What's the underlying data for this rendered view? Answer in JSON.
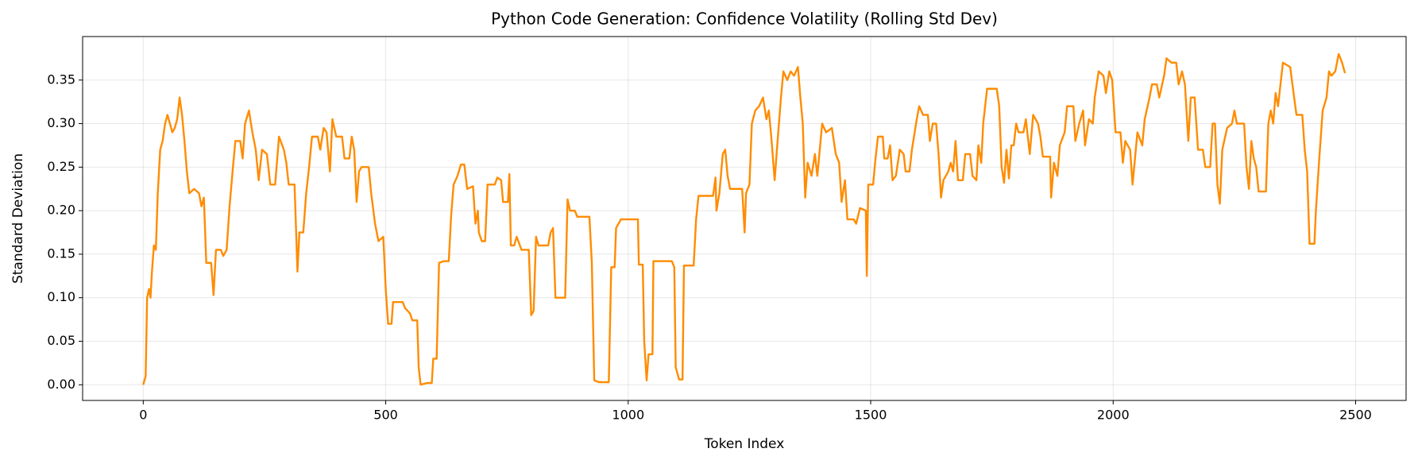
{
  "chart_data": {
    "type": "line",
    "title": "Python Code Generation: Confidence Volatility (Rolling Std Dev)",
    "x_label": "Token Index",
    "y_label": "Standard Deviation",
    "color": "#ff8c00",
    "grid": true,
    "xlim": [
      -125,
      2604
    ],
    "ylim": [
      -0.018,
      0.4
    ],
    "xticks": [
      0,
      500,
      1000,
      1500,
      2000,
      2500
    ],
    "yticks": [
      {
        "value": 0,
        "label": "0.00"
      },
      {
        "value": 0.05,
        "label": "0.05"
      },
      {
        "value": 0.1,
        "label": "0.10"
      },
      {
        "value": 0.15,
        "label": "0.15"
      },
      {
        "value": 0.2,
        "label": "0.20"
      },
      {
        "value": 0.25,
        "label": "0.25"
      },
      {
        "value": 0.3,
        "label": "0.30"
      },
      {
        "value": 0.35,
        "label": "0.35"
      }
    ],
    "x": [
      0,
      5,
      8,
      12,
      15,
      18,
      22,
      26,
      30,
      35,
      40,
      45,
      50,
      55,
      60,
      65,
      70,
      75,
      80,
      85,
      90,
      95,
      105,
      115,
      120,
      125,
      130,
      140,
      145,
      150,
      160,
      165,
      172,
      178,
      185,
      190,
      200,
      205,
      210,
      218,
      225,
      232,
      238,
      245,
      255,
      262,
      272,
      280,
      290,
      295,
      300,
      312,
      318,
      322,
      330,
      336,
      342,
      348,
      360,
      365,
      372,
      378,
      385,
      390,
      398,
      410,
      415,
      425,
      430,
      435,
      440,
      445,
      450,
      465,
      470,
      478,
      485,
      495,
      500,
      505,
      512,
      515,
      535,
      540,
      550,
      555,
      565,
      568,
      572,
      585,
      595,
      598,
      605,
      610,
      620,
      630,
      635,
      640,
      648,
      655,
      662,
      668,
      680,
      685,
      690,
      692,
      698,
      705,
      710,
      725,
      730,
      738,
      742,
      752,
      755,
      758,
      765,
      770,
      780,
      790,
      795,
      800,
      805,
      810,
      815,
      835,
      840,
      845,
      850,
      870,
      875,
      880,
      890,
      895,
      920,
      925,
      930,
      940,
      960,
      965,
      972,
      975,
      985,
      1020,
      1022,
      1030,
      1033,
      1038,
      1042,
      1050,
      1052,
      1090,
      1095,
      1098,
      1105,
      1112,
      1115,
      1135,
      1140,
      1145,
      1175,
      1180,
      1182,
      1188,
      1195,
      1200,
      1205,
      1210,
      1235,
      1240,
      1243,
      1250,
      1255,
      1262,
      1270,
      1278,
      1285,
      1290,
      1295,
      1302,
      1308,
      1315,
      1320,
      1328,
      1335,
      1342,
      1350,
      1355,
      1360,
      1365,
      1370,
      1378,
      1385,
      1390,
      1395,
      1400,
      1408,
      1420,
      1428,
      1435,
      1440,
      1447,
      1452,
      1465,
      1470,
      1478,
      1490,
      1492,
      1495,
      1505,
      1510,
      1515,
      1525,
      1528,
      1535,
      1540,
      1545,
      1552,
      1560,
      1568,
      1572,
      1580,
      1585,
      1595,
      1600,
      1608,
      1618,
      1622,
      1628,
      1635,
      1640,
      1645,
      1650,
      1660,
      1665,
      1670,
      1675,
      1680,
      1690,
      1695,
      1705,
      1710,
      1718,
      1722,
      1728,
      1732,
      1740,
      1760,
      1765,
      1770,
      1775,
      1780,
      1785,
      1790,
      1795,
      1800,
      1805,
      1815,
      1820,
      1828,
      1835,
      1845,
      1850,
      1855,
      1870,
      1872,
      1878,
      1885,
      1890,
      1900,
      1905,
      1918,
      1922,
      1930,
      1938,
      1942,
      1950,
      1958,
      1962,
      1970,
      1980,
      1985,
      1992,
      1998,
      2005,
      2015,
      2020,
      2025,
      2035,
      2040,
      2045,
      2050,
      2060,
      2065,
      2075,
      2080,
      2090,
      2095,
      2105,
      2110,
      2120,
      2130,
      2135,
      2142,
      2148,
      2155,
      2160,
      2168,
      2175,
      2185,
      2190,
      2200,
      2205,
      2210,
      2215,
      2220,
      2225,
      2235,
      2245,
      2250,
      2255,
      2270,
      2275,
      2280,
      2285,
      2290,
      2295,
      2300,
      2315,
      2320,
      2325,
      2330,
      2335,
      2340,
      2345,
      2350,
      2365,
      2372,
      2378,
      2390,
      2395,
      2400,
      2405,
      2415,
      2418,
      2425,
      2432,
      2440,
      2445,
      2450,
      2458,
      2465,
      2472,
      2478
    ],
    "values": [
      0.0,
      0.01,
      0.1,
      0.11,
      0.1,
      0.13,
      0.16,
      0.155,
      0.22,
      0.27,
      0.28,
      0.3,
      0.31,
      0.3,
      0.29,
      0.295,
      0.305,
      0.33,
      0.31,
      0.28,
      0.245,
      0.22,
      0.225,
      0.22,
      0.205,
      0.215,
      0.14,
      0.14,
      0.103,
      0.155,
      0.155,
      0.148,
      0.155,
      0.205,
      0.25,
      0.28,
      0.28,
      0.26,
      0.3,
      0.315,
      0.29,
      0.27,
      0.235,
      0.27,
      0.265,
      0.23,
      0.23,
      0.285,
      0.27,
      0.255,
      0.23,
      0.23,
      0.13,
      0.175,
      0.175,
      0.22,
      0.25,
      0.285,
      0.285,
      0.27,
      0.295,
      0.29,
      0.245,
      0.305,
      0.285,
      0.285,
      0.26,
      0.26,
      0.285,
      0.27,
      0.21,
      0.245,
      0.25,
      0.25,
      0.22,
      0.185,
      0.165,
      0.17,
      0.11,
      0.07,
      0.07,
      0.095,
      0.095,
      0.088,
      0.082,
      0.074,
      0.074,
      0.02,
      0.0,
      0.002,
      0.002,
      0.03,
      0.03,
      0.14,
      0.142,
      0.142,
      0.195,
      0.23,
      0.24,
      0.253,
      0.253,
      0.225,
      0.228,
      0.185,
      0.2,
      0.175,
      0.165,
      0.165,
      0.23,
      0.23,
      0.238,
      0.235,
      0.21,
      0.21,
      0.242,
      0.16,
      0.16,
      0.17,
      0.155,
      0.155,
      0.155,
      0.08,
      0.085,
      0.17,
      0.16,
      0.16,
      0.175,
      0.18,
      0.1,
      0.1,
      0.213,
      0.2,
      0.2,
      0.193,
      0.193,
      0.14,
      0.005,
      0.003,
      0.003,
      0.135,
      0.135,
      0.18,
      0.19,
      0.19,
      0.138,
      0.138,
      0.05,
      0.005,
      0.035,
      0.035,
      0.142,
      0.142,
      0.135,
      0.02,
      0.006,
      0.006,
      0.137,
      0.137,
      0.19,
      0.217,
      0.217,
      0.238,
      0.2,
      0.22,
      0.265,
      0.27,
      0.24,
      0.225,
      0.225,
      0.175,
      0.22,
      0.23,
      0.3,
      0.315,
      0.32,
      0.33,
      0.305,
      0.315,
      0.285,
      0.235,
      0.28,
      0.33,
      0.36,
      0.35,
      0.36,
      0.355,
      0.365,
      0.33,
      0.3,
      0.215,
      0.255,
      0.24,
      0.265,
      0.24,
      0.27,
      0.3,
      0.29,
      0.295,
      0.265,
      0.255,
      0.21,
      0.235,
      0.19,
      0.19,
      0.185,
      0.203,
      0.2,
      0.125,
      0.23,
      0.23,
      0.26,
      0.285,
      0.285,
      0.26,
      0.26,
      0.275,
      0.235,
      0.24,
      0.27,
      0.265,
      0.245,
      0.245,
      0.27,
      0.305,
      0.32,
      0.31,
      0.31,
      0.28,
      0.3,
      0.3,
      0.265,
      0.215,
      0.235,
      0.245,
      0.255,
      0.245,
      0.28,
      0.235,
      0.235,
      0.265,
      0.265,
      0.24,
      0.235,
      0.275,
      0.255,
      0.3,
      0.34,
      0.34,
      0.32,
      0.25,
      0.232,
      0.27,
      0.237,
      0.275,
      0.275,
      0.3,
      0.29,
      0.29,
      0.305,
      0.265,
      0.31,
      0.3,
      0.285,
      0.262,
      0.262,
      0.215,
      0.255,
      0.24,
      0.275,
      0.29,
      0.32,
      0.32,
      0.28,
      0.3,
      0.315,
      0.275,
      0.305,
      0.3,
      0.33,
      0.36,
      0.355,
      0.335,
      0.36,
      0.35,
      0.29,
      0.29,
      0.255,
      0.28,
      0.27,
      0.23,
      0.26,
      0.29,
      0.275,
      0.305,
      0.33,
      0.345,
      0.345,
      0.33,
      0.355,
      0.375,
      0.37,
      0.37,
      0.345,
      0.36,
      0.345,
      0.28,
      0.33,
      0.33,
      0.27,
      0.27,
      0.25,
      0.25,
      0.3,
      0.3,
      0.23,
      0.208,
      0.27,
      0.295,
      0.3,
      0.315,
      0.3,
      0.3,
      0.25,
      0.225,
      0.28,
      0.26,
      0.25,
      0.222,
      0.222,
      0.3,
      0.315,
      0.3,
      0.335,
      0.32,
      0.345,
      0.37,
      0.365,
      0.335,
      0.31,
      0.31,
      0.27,
      0.245,
      0.162,
      0.162,
      0.2,
      0.26,
      0.315,
      0.33,
      0.36,
      0.355,
      0.36,
      0.38,
      0.37,
      0.358
    ]
  }
}
